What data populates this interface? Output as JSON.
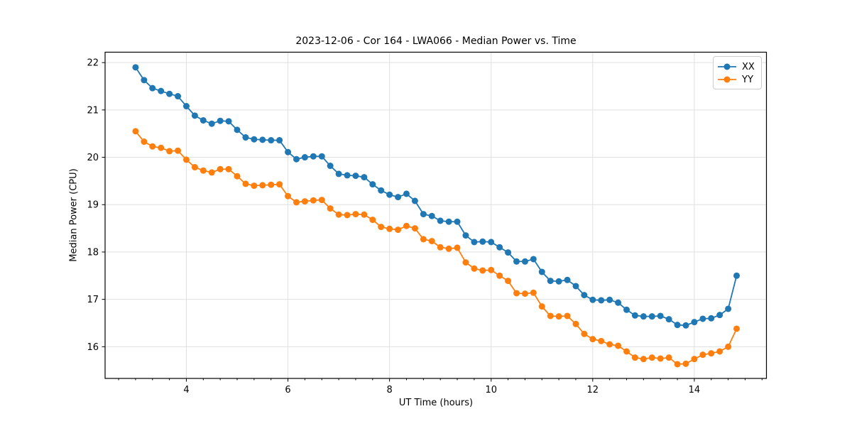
{
  "figure": {
    "background": "#ffffff"
  },
  "chart_data": {
    "type": "line",
    "title": "2023-12-06 - Cor 164 - LWA066 - Median Power vs. Time",
    "xlabel": "UT Time (hours)",
    "ylabel": "Median Power (CPU)",
    "xlim": [
      2.4,
      15.42
    ],
    "ylim": [
      15.33,
      22.22
    ],
    "x_major_ticks": [
      4,
      6,
      8,
      10,
      12,
      14
    ],
    "x_minor_tick_step": 0.33333,
    "y_major_ticks": [
      16,
      17,
      18,
      19,
      20,
      21,
      22
    ],
    "grid": true,
    "grid_color": "#e0e0e0",
    "legend_position": "upper right",
    "marker": "circle",
    "x": [
      3.0,
      3.167,
      3.333,
      3.5,
      3.667,
      3.833,
      4.0,
      4.167,
      4.333,
      4.5,
      4.667,
      4.833,
      5.0,
      5.167,
      5.333,
      5.5,
      5.667,
      5.833,
      6.0,
      6.167,
      6.333,
      6.5,
      6.667,
      6.833,
      7.0,
      7.167,
      7.333,
      7.5,
      7.667,
      7.833,
      8.0,
      8.167,
      8.333,
      8.5,
      8.667,
      8.833,
      9.0,
      9.167,
      9.333,
      9.5,
      9.667,
      9.833,
      10.0,
      10.167,
      10.333,
      10.5,
      10.667,
      10.833,
      11.0,
      11.167,
      11.333,
      11.5,
      11.667,
      11.833,
      12.0,
      12.167,
      12.333,
      12.5,
      12.667,
      12.833,
      13.0,
      13.167,
      13.333,
      13.5,
      13.667,
      13.833,
      14.0,
      14.167,
      14.333,
      14.5,
      14.667,
      14.833
    ],
    "series": [
      {
        "name": "XX",
        "color": "#1f77b4",
        "values": [
          21.9,
          21.63,
          21.46,
          21.4,
          21.34,
          21.29,
          21.08,
          20.88,
          20.78,
          20.71,
          20.77,
          20.76,
          20.58,
          20.42,
          20.38,
          20.37,
          20.36,
          20.36,
          20.11,
          19.96,
          20.0,
          20.02,
          20.02,
          19.82,
          19.65,
          19.62,
          19.61,
          19.58,
          19.43,
          19.3,
          19.21,
          19.16,
          19.23,
          19.08,
          18.8,
          18.76,
          18.66,
          18.64,
          18.64,
          18.35,
          18.21,
          18.22,
          18.21,
          18.1,
          17.99,
          17.8,
          17.8,
          17.85,
          17.58,
          17.39,
          17.38,
          17.41,
          17.28,
          17.09,
          16.99,
          16.98,
          16.99,
          16.93,
          16.78,
          16.66,
          16.64,
          16.64,
          16.65,
          16.58,
          16.46,
          16.45,
          16.52,
          16.59,
          16.6,
          16.67,
          16.8,
          17.5
        ]
      },
      {
        "name": "YY",
        "color": "#ff7f0e",
        "values": [
          20.55,
          20.33,
          20.23,
          20.2,
          20.13,
          20.14,
          19.95,
          19.79,
          19.72,
          19.68,
          19.75,
          19.75,
          19.6,
          19.44,
          19.4,
          19.41,
          19.42,
          19.43,
          19.18,
          19.05,
          19.07,
          19.09,
          19.1,
          18.92,
          18.79,
          18.78,
          18.8,
          18.79,
          18.68,
          18.53,
          18.49,
          18.47,
          18.55,
          18.5,
          18.27,
          18.23,
          18.1,
          18.07,
          18.09,
          17.78,
          17.65,
          17.61,
          17.62,
          17.5,
          17.39,
          17.13,
          17.12,
          17.14,
          16.85,
          16.65,
          16.64,
          16.65,
          16.48,
          16.27,
          16.16,
          16.12,
          16.05,
          16.02,
          15.9,
          15.77,
          15.74,
          15.77,
          15.75,
          15.77,
          15.63,
          15.64,
          15.74,
          15.83,
          15.86,
          15.9,
          16.0,
          16.38
        ]
      }
    ]
  }
}
